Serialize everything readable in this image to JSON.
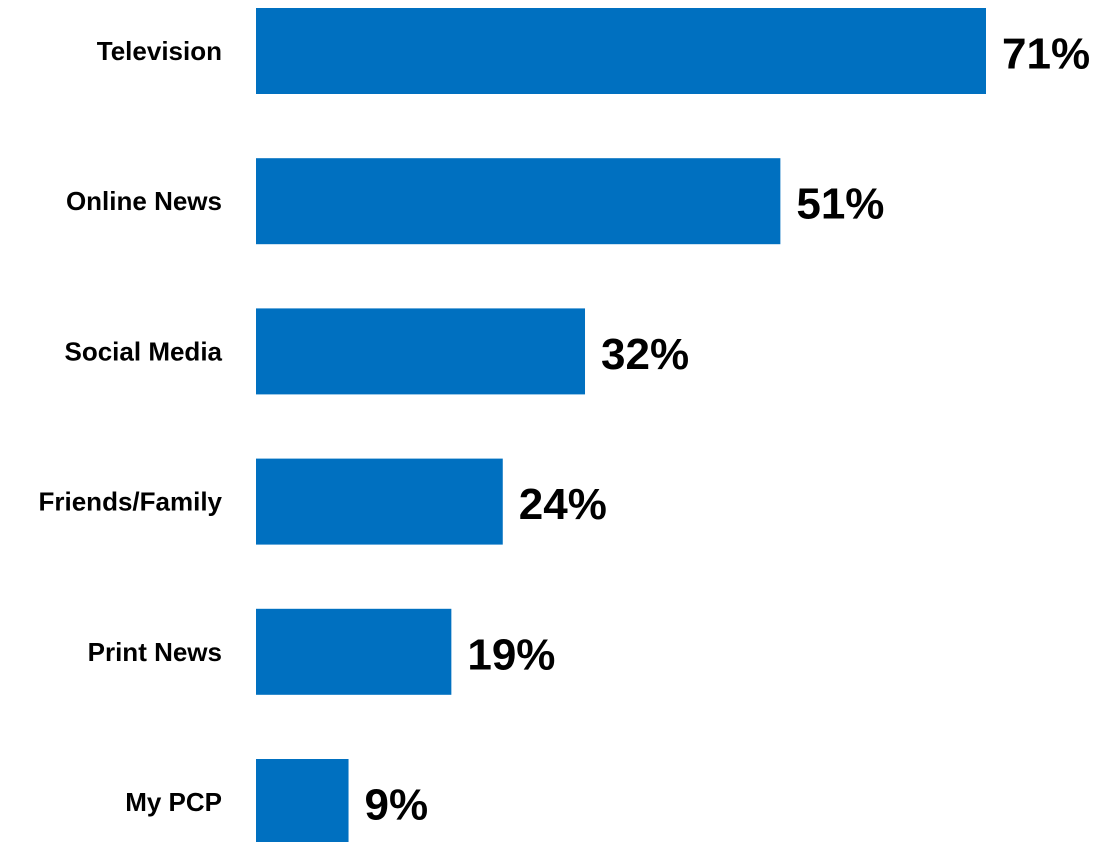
{
  "chart_data": {
    "type": "bar",
    "orientation": "horizontal",
    "categories": [
      "Television",
      "Online News",
      "Social Media",
      "Friends/Family",
      "Print News",
      "My PCP"
    ],
    "values": [
      71,
      51,
      32,
      24,
      19,
      9
    ],
    "value_labels": [
      "71%",
      "51%",
      "32%",
      "24%",
      "19%",
      "9%"
    ],
    "unit": "%",
    "title": "",
    "xlabel": "",
    "ylabel": "",
    "xlim": [
      0,
      71
    ],
    "grid": false,
    "legend": "none",
    "bar_color": "#0070C0"
  }
}
